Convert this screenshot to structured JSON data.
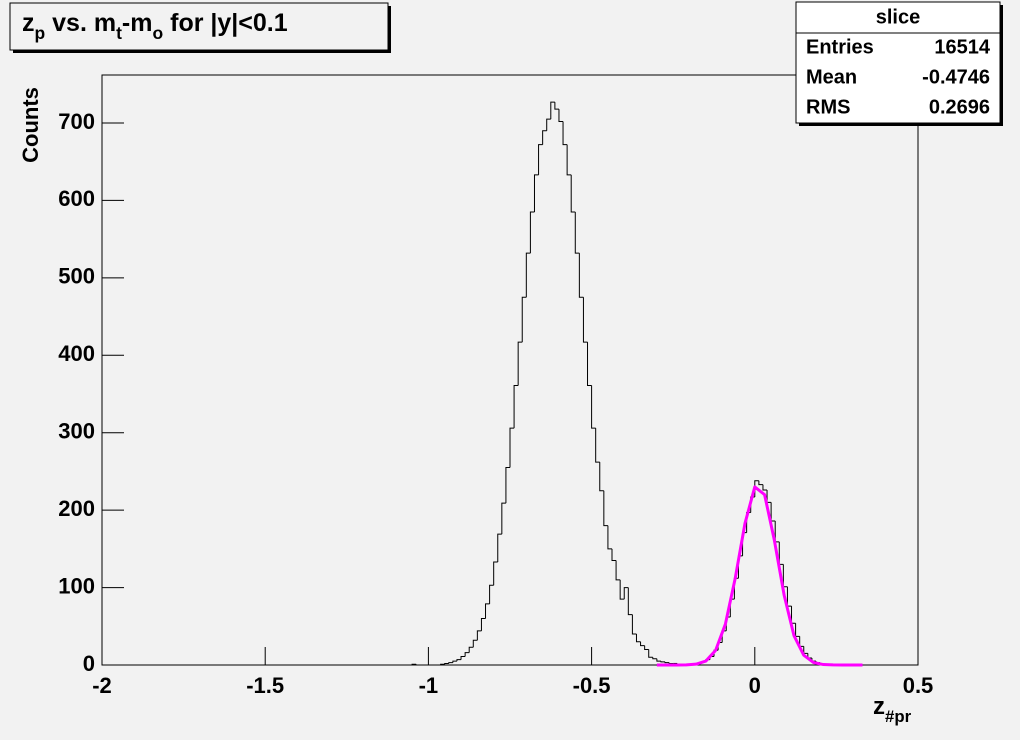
{
  "chart_data": {
    "type": "histogram",
    "title": [
      "z",
      "p",
      " vs. m",
      "t",
      "-m",
      "o",
      " for |y|<0.1"
    ],
    "x_label": [
      "z",
      "#pr"
    ],
    "y_label": "Counts",
    "color": "#000000",
    "xlim": [
      -2,
      0.5
    ],
    "ylim": [
      0,
      762
    ],
    "xticks": [
      -2,
      -1.5,
      -1,
      -0.5,
      0,
      0.5
    ],
    "yticks": [
      0,
      100,
      200,
      300,
      400,
      500,
      600,
      700
    ],
    "bins": [
      -2,
      -1.9875,
      -1.975,
      -1.9625,
      -1.95,
      -1.9375,
      -1.925,
      -1.9125,
      -1.9,
      -1.8875,
      -1.875,
      -1.8625,
      -1.85,
      -1.8375,
      -1.825,
      -1.8125,
      -1.8,
      -1.7875,
      -1.775,
      -1.7625,
      -1.75,
      -1.7375,
      -1.725,
      -1.7125,
      -1.7,
      -1.6875,
      -1.675,
      -1.6625,
      -1.65,
      -1.6375,
      -1.625,
      -1.6125,
      -1.6,
      -1.5875,
      -1.575,
      -1.5625,
      -1.55,
      -1.5375,
      -1.525,
      -1.5125,
      -1.5,
      -1.4875,
      -1.475,
      -1.4625,
      -1.45,
      -1.4375,
      -1.425,
      -1.4125,
      -1.4,
      -1.3875,
      -1.375,
      -1.3625,
      -1.35,
      -1.3375,
      -1.325,
      -1.3125,
      -1.3,
      -1.2875,
      -1.275,
      -1.2625,
      -1.25,
      -1.2375,
      -1.225,
      -1.2125,
      -1.2,
      -1.1875,
      -1.175,
      -1.1625,
      -1.15,
      -1.1375,
      -1.125,
      -1.1125,
      -1.1,
      -1.0875,
      -1.075,
      -1.0625,
      -1.05,
      -1.0375,
      -1.025,
      -1.0125,
      -1,
      -0.9875,
      -0.975,
      -0.9625,
      -0.95,
      -0.9375,
      -0.925,
      -0.9125,
      -0.9,
      -0.8875,
      -0.875,
      -0.8625,
      -0.85,
      -0.8375,
      -0.825,
      -0.8125,
      -0.8,
      -0.7875,
      -0.775,
      -0.7625,
      -0.75,
      -0.7375,
      -0.725,
      -0.7125,
      -0.7,
      -0.6875,
      -0.675,
      -0.6625,
      -0.65,
      -0.6375,
      -0.625,
      -0.6125,
      -0.6,
      -0.5875,
      -0.575,
      -0.5625,
      -0.55,
      -0.5375,
      -0.525,
      -0.5125,
      -0.5,
      -0.4875,
      -0.475,
      -0.4625,
      -0.45,
      -0.4375,
      -0.425,
      -0.4125,
      -0.4,
      -0.3875,
      -0.375,
      -0.3625,
      -0.35,
      -0.3375,
      -0.325,
      -0.3125,
      -0.3,
      -0.2875,
      -0.275,
      -0.2625,
      -0.25,
      -0.2375,
      -0.225,
      -0.2125,
      -0.2,
      -0.1875,
      -0.175,
      -0.1625,
      -0.15,
      -0.1375,
      -0.125,
      -0.1125,
      -0.1,
      -0.0875,
      -0.075,
      -0.0625,
      -0.05,
      -0.0375,
      -0.025,
      -0.0125,
      0,
      0.0125,
      0.025,
      0.0375,
      0.05,
      0.0625,
      0.075,
      0.0875,
      0.1,
      0.1125,
      0.125,
      0.1375,
      0.15,
      0.1625,
      0.175,
      0.1875,
      0.2,
      0.2125,
      0.225,
      0.2375,
      0.25,
      0.2625,
      0.275,
      0.2875,
      0.3,
      0.3125,
      0.325,
      0.3375,
      0.35,
      0.3625,
      0.375,
      0.3875,
      0.4,
      0.4125,
      0.425,
      0.4375,
      0.45,
      0.4625,
      0.475,
      0.4875,
      0.5
    ],
    "values": [
      0,
      0,
      0,
      0,
      0,
      0,
      0,
      0,
      0,
      0,
      0,
      0,
      0,
      0,
      0,
      0,
      0,
      0,
      0,
      0,
      0,
      0,
      0,
      0,
      0,
      0,
      0,
      0,
      0,
      0,
      0,
      0,
      0,
      0,
      0,
      0,
      0,
      0,
      0,
      0,
      0,
      0,
      0,
      0,
      0,
      0,
      0,
      0,
      0,
      0,
      0,
      0,
      0,
      0,
      0,
      0,
      0,
      0,
      0,
      0,
      0,
      0,
      0,
      0,
      0,
      0,
      0,
      0,
      0,
      0,
      0,
      0,
      0,
      0,
      0,
      0,
      1,
      0,
      0,
      0,
      0,
      0,
      0,
      1,
      2,
      3,
      5,
      7,
      11,
      16,
      23,
      32,
      44,
      60,
      79,
      103,
      133,
      169,
      209,
      255,
      306,
      361,
      417,
      475,
      532,
      585,
      633,
      672,
      690,
      705,
      727,
      718,
      702,
      672,
      633,
      585,
      532,
      475,
      417,
      361,
      306,
      262,
      225,
      180,
      150,
      135,
      110,
      85,
      100,
      65,
      40,
      30,
      25,
      20,
      10,
      8,
      5,
      4,
      3,
      2,
      2,
      1,
      1,
      1,
      0,
      1,
      2,
      4,
      7,
      11,
      19,
      29,
      44,
      62,
      85,
      112,
      141,
      171,
      197,
      217,
      238,
      233,
      226,
      210,
      186,
      159,
      130,
      101,
      76,
      54,
      37,
      24,
      15,
      9,
      5,
      3,
      2,
      1,
      1,
      0,
      0,
      0,
      0,
      0,
      0,
      0,
      0,
      0,
      0,
      0,
      0,
      0,
      0,
      0,
      0,
      0,
      0,
      0,
      0,
      0
    ],
    "fit": {
      "color": "#ff00ff",
      "x": [
        -0.3,
        -0.27,
        -0.24,
        -0.21,
        -0.18,
        -0.15,
        -0.12,
        -0.09,
        -0.06,
        -0.03,
        0,
        0.03,
        0.06,
        0.09,
        0.12,
        0.15,
        0.18,
        0.21,
        0.24,
        0.27,
        0.3,
        0.33
      ],
      "values": [
        0,
        0,
        0.02,
        0.18,
        1.1,
        5.1,
        18.9,
        53,
        112,
        183,
        230,
        220,
        161,
        90,
        38,
        12.7,
        3.2,
        0.6,
        0.1,
        0,
        0,
        0
      ]
    },
    "stats": {
      "title": "slice",
      "rows": [
        {
          "label": "Entries",
          "value": 16514
        },
        {
          "label": "Mean",
          "value": -0.4746
        },
        {
          "label": "RMS",
          "value": 0.2696
        }
      ]
    }
  }
}
